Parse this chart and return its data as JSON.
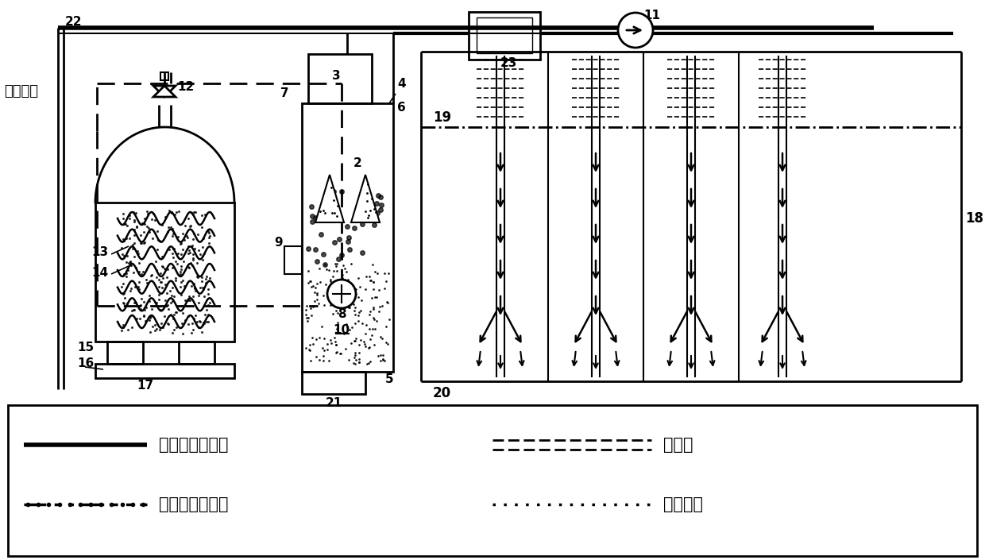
{
  "bg_color": "#ffffff",
  "fig_width": 12.4,
  "fig_height": 7.05,
  "dpi": 100,
  "label_jieshenghuo": "接生活区",
  "legend": {
    "solid_label": "厌氧反应进水管",
    "dash_label": "厌氧反应出水管",
    "double_label": "沼气管",
    "dot_label": "热水环路"
  }
}
